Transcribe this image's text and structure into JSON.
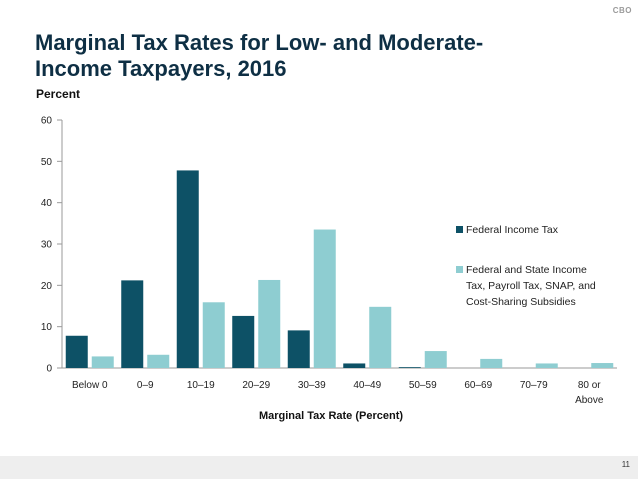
{
  "header": {
    "logo": "CBO",
    "title_lines": [
      "Marginal Tax Rates for Low- and Moderate-",
      "Income Taxpayers, 2016"
    ],
    "unit_label": "Percent"
  },
  "footer": {
    "page_number": "11"
  },
  "colors": {
    "federal": "#0d5166",
    "combined": "#8ecdd1",
    "axis": "#9a9a9a"
  },
  "chart_data": {
    "type": "bar",
    "title": "Marginal Tax Rates for Low- and Moderate-Income Taxpayers, 2016",
    "xlabel": "Marginal Tax Rate (Percent)",
    "ylabel": "Percent",
    "ylim": [
      0,
      60
    ],
    "yticks": [
      0,
      10,
      20,
      30,
      40,
      50,
      60
    ],
    "categories": [
      "Below 0",
      "0–9",
      "10–19",
      "20–29",
      "30–39",
      "40–49",
      "50–59",
      "60–69",
      "70–79",
      "80 or Above"
    ],
    "category_lines": [
      [
        "Below 0"
      ],
      [
        "0–9"
      ],
      [
        "10–19"
      ],
      [
        "20–29"
      ],
      [
        "30–39"
      ],
      [
        "40–49"
      ],
      [
        "50–59"
      ],
      [
        "60–69"
      ],
      [
        "70–79"
      ],
      [
        "80 or",
        "Above"
      ]
    ],
    "series": [
      {
        "name": "Federal Income Tax",
        "legend_lines": [
          "Federal Income Tax"
        ],
        "values": [
          7.8,
          21.2,
          47.8,
          12.6,
          9.1,
          1.1,
          0.2,
          0,
          0,
          0
        ]
      },
      {
        "name": "Federal and State Income Tax, Payroll Tax, SNAP, and Cost-Sharing Subsidies",
        "legend_lines": [
          "Federal and State Income",
          "Tax, Payroll Tax, SNAP, and",
          "Cost-Sharing Subsidies"
        ],
        "values": [
          2.8,
          3.2,
          15.9,
          21.3,
          33.5,
          14.8,
          4.1,
          2.2,
          1.1,
          1.2
        ]
      }
    ],
    "legend_position": "right",
    "grid": false
  }
}
